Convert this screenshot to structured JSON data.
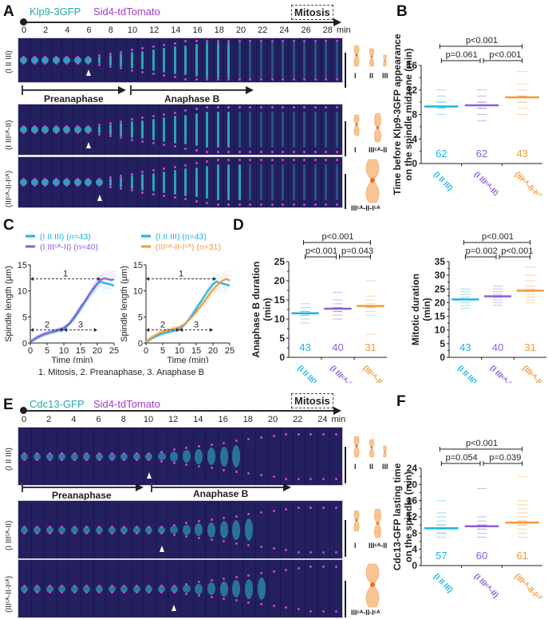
{
  "panels": {
    "A": {
      "letter": "A",
      "channel_green": "Klp9-3GFP",
      "channel_magenta": "Sid4-tdTomato",
      "mitosis_label": "Mitosis",
      "time_ticks": [
        "0",
        "2",
        "4",
        "6",
        "8",
        "10",
        "12",
        "14",
        "16",
        "18",
        "20",
        "22",
        "24",
        "26",
        "28"
      ],
      "time_unit": "min",
      "rows": [
        {
          "label": "(I II III)",
          "anaphase_frame": 6
        },
        {
          "label": "(I IIIᶜᴬ-II)",
          "anaphase_frame": 6
        },
        {
          "label": "(IIIᶜᴬ-II-Iᶜᴬ)",
          "anaphase_frame": 7
        }
      ],
      "phases": {
        "preanaphase": "Preanaphase",
        "anaphase_b": "Anaphase B"
      },
      "chromosome_labels": {
        "row1": [
          "I",
          "II",
          "III"
        ],
        "row2": [
          "I",
          "IIIᶜᴬ-II"
        ],
        "row3": [
          "IIIᶜᴬ-II-Iᶜᴬ"
        ]
      }
    },
    "E": {
      "letter": "E",
      "channel_green": "Cdc13-GFP",
      "channel_magenta": "Sid4-tdTomato",
      "mitosis_label": "Mitosis",
      "time_ticks": [
        "0",
        "2",
        "4",
        "6",
        "8",
        "10",
        "12",
        "14",
        "16",
        "18",
        "20",
        "22",
        "24"
      ],
      "time_unit": "min",
      "rows": [
        {
          "label": "(I II III)"
        },
        {
          "label": "(I IIIᶜᴬ-II)"
        },
        {
          "label": "(IIIᶜᴬ-II-Iᶜᴬ)"
        }
      ],
      "phases": {
        "preanaphase": "Preanaphase",
        "anaphase_b": "Anaphase B"
      },
      "chromosome_labels": {
        "row1": [
          "I",
          "II",
          "III"
        ],
        "row2": [
          "I",
          "IIIᶜᴬ-II"
        ],
        "row3": [
          "IIIᶜᴬ-II-Iᶜᴬ"
        ]
      }
    },
    "C_caption": "1. Mitosis, 2. Preanaphase, 3. Anaphase B"
  },
  "colors": {
    "strain1": "#1fb1e6",
    "strain2": "#8a5fd8",
    "strain3": "#f39a3a",
    "chromosome_fill": "#f8c493",
    "centromere": "#f26a1b"
  },
  "chart_data": [
    {
      "id": "B",
      "letter": "B",
      "type": "scatter",
      "ylabel": "Time before Klp9-3GFP appearance on the spindle midzone (min)",
      "ylabel_lines": [
        "Time before Klp9-3GFP appearance",
        "on the spindle midzone (min)"
      ],
      "ylim": [
        0,
        16
      ],
      "yticks": [
        "0",
        "4",
        "8",
        "12",
        "16"
      ],
      "categories": [
        "(I II III)",
        "(I IIIᶜᴬ-II)",
        "(IIIᶜᴬ-II-Iᶜᴬ)"
      ],
      "means": [
        9.3,
        9.5,
        10.8
      ],
      "n": [
        "62",
        "62",
        "43"
      ],
      "points": [
        [
          8,
          9,
          9,
          10,
          10,
          11,
          12
        ],
        [
          7,
          8,
          9,
          9,
          10,
          10,
          11,
          12
        ],
        [
          8,
          9,
          10,
          10,
          11,
          11,
          12,
          13,
          15
        ]
      ],
      "pvalues": {
        "overall": "p<0.001",
        "left": "p=0.061",
        "right": "p<0.001"
      }
    },
    {
      "id": "C1",
      "letter": "C",
      "type": "line",
      "xlabel": "Time (min)",
      "ylabel": "Spindle length (μm)",
      "xlim": [
        0,
        25
      ],
      "ylim": [
        0,
        15
      ],
      "xticks": [
        "0",
        "5",
        "10",
        "15",
        "20",
        "25"
      ],
      "yticks": [
        "0",
        "5",
        "10",
        "15"
      ],
      "legend": [
        "(I II III) (n=43)",
        "(I IIIᶜᴬ-II) (n=40)"
      ],
      "annotations": [
        {
          "label": "1",
          "y": 12.3,
          "x": [
            0,
            21
          ]
        },
        {
          "label": "2",
          "y": 2.5,
          "x": [
            0,
            10
          ]
        },
        {
          "label": "3",
          "y": 2.5,
          "x": [
            10,
            20
          ]
        }
      ],
      "series": [
        {
          "name": "(I II III)",
          "x": [
            0,
            2,
            4,
            6,
            8,
            10,
            12,
            14,
            16,
            18,
            20,
            21,
            22,
            23,
            24,
            25
          ],
          "y": [
            0.2,
            1.0,
            1.6,
            2.0,
            2.3,
            2.6,
            3.8,
            5.6,
            7.6,
            9.6,
            11.3,
            11.8,
            11.5,
            11.4,
            11.2,
            11.0
          ]
        },
        {
          "name": "(I IIIᶜᴬ-II)",
          "x": [
            0,
            2,
            4,
            6,
            8,
            10,
            12,
            14,
            16,
            18,
            20,
            21,
            22,
            23,
            24,
            25
          ],
          "y": [
            0.2,
            1.1,
            1.7,
            2.1,
            2.5,
            2.9,
            4.0,
            5.8,
            7.8,
            9.8,
            11.4,
            12.1,
            12.4,
            12.3,
            12.1,
            12.2
          ]
        }
      ]
    },
    {
      "id": "C2",
      "type": "line",
      "xlabel": "Time (min)",
      "ylabel": "Spindle length (μm)",
      "xlim": [
        0,
        25
      ],
      "ylim": [
        0,
        15
      ],
      "xticks": [
        "0",
        "5",
        "10",
        "15",
        "20",
        "25"
      ],
      "yticks": [
        "0",
        "5",
        "10",
        "15"
      ],
      "legend": [
        "(I II III) (n=43)",
        "(IIIᶜᴬ-II-Iᶜᴬ) (n=31)"
      ],
      "annotations": [
        {
          "label": "1",
          "y": 12.3,
          "x": [
            0,
            21
          ]
        },
        {
          "label": "2",
          "y": 2.5,
          "x": [
            0,
            10
          ]
        },
        {
          "label": "3",
          "y": 2.5,
          "x": [
            10,
            20
          ]
        }
      ],
      "series": [
        {
          "name": "(I II III)",
          "x": [
            0,
            2,
            4,
            6,
            8,
            10,
            12,
            14,
            16,
            18,
            20,
            21,
            22,
            23,
            24,
            25
          ],
          "y": [
            0.2,
            1.0,
            1.6,
            2.0,
            2.3,
            2.6,
            3.8,
            5.6,
            7.6,
            9.6,
            11.3,
            11.8,
            11.5,
            11.4,
            11.2,
            11.0
          ]
        },
        {
          "name": "(IIIᶜᴬ-II-Iᶜᴬ)",
          "x": [
            0,
            2,
            4,
            6,
            8,
            10,
            12,
            14,
            16,
            18,
            20,
            22,
            23,
            24,
            25
          ],
          "y": [
            0.2,
            1.2,
            1.9,
            2.4,
            2.7,
            3.0,
            3.9,
            5.2,
            6.8,
            8.5,
            10.2,
            11.6,
            12.0,
            12.3,
            12.0
          ]
        }
      ]
    },
    {
      "id": "D1",
      "letter": "D",
      "type": "scatter",
      "ylabel_lines": [
        "Anaphase B duration",
        "(min)"
      ],
      "ylabel": "Anaphase B duration (min)",
      "ylim": [
        0,
        25
      ],
      "yticks": [
        "0",
        "5",
        "10",
        "15",
        "20",
        "25"
      ],
      "categories": [
        "(I II III)",
        "(I IIIᶜᴬ-II)",
        "(IIIᶜᴬ-II-Iᶜᴬ)"
      ],
      "means": [
        11.5,
        12.7,
        13.4
      ],
      "n": [
        "43",
        "40",
        "31"
      ],
      "points": [
        [
          9,
          10,
          11,
          11,
          12,
          12,
          13,
          14
        ],
        [
          10,
          11,
          12,
          12,
          13,
          13,
          14,
          15,
          17
        ],
        [
          6,
          11,
          12,
          13,
          13,
          14,
          15,
          16,
          20
        ]
      ],
      "pvalues": {
        "overall": "p<0.001",
        "left": "p<0.001",
        "right": "p=0.043"
      }
    },
    {
      "id": "D2",
      "type": "scatter",
      "ylabel_lines": [
        "Mitotic duration",
        "(min)"
      ],
      "ylabel": "Mitotic duration (min)",
      "ylim": [
        0,
        35
      ],
      "yticks": [
        "0",
        "5",
        "10",
        "15",
        "20",
        "25",
        "30",
        "35"
      ],
      "categories": [
        "(I II III)",
        "(I IIIᶜᴬ-II)",
        "(IIIᶜᴬ-II-Iᶜᴬ)"
      ],
      "means": [
        21.2,
        22.3,
        24.4
      ],
      "n": [
        "43",
        "40",
        "31"
      ],
      "points": [
        [
          18,
          19,
          20,
          21,
          21,
          22,
          23,
          24,
          25
        ],
        [
          19,
          20,
          21,
          22,
          22,
          23,
          24,
          25,
          26
        ],
        [
          20,
          21,
          22,
          23,
          24,
          25,
          26,
          28,
          30,
          33
        ]
      ],
      "pvalues": {
        "overall": "p<0.001",
        "left": "p=0.002",
        "right": "p<0.001"
      }
    },
    {
      "id": "F",
      "letter": "F",
      "type": "scatter",
      "ylabel_lines": [
        "Cdc13-GFP lasting time",
        "on the spindle (min)"
      ],
      "ylabel": "Cdc13-GFP lasting time on the spindle (min)",
      "ylim": [
        0,
        24
      ],
      "yticks": [
        "0",
        "4",
        "8",
        "12",
        "16",
        "20",
        "24"
      ],
      "categories": [
        "(I II III)",
        "(I IIIᶜᴬ-II)",
        "(IIIᶜᴬ-II-Iᶜᴬ)"
      ],
      "means": [
        9.2,
        9.7,
        10.6
      ],
      "n": [
        "57",
        "60",
        "61"
      ],
      "points": [
        [
          7,
          8,
          8,
          9,
          9,
          10,
          10,
          11,
          12,
          13,
          16
        ],
        [
          7,
          8,
          9,
          9,
          10,
          10,
          11,
          12,
          19
        ],
        [
          7,
          8,
          9,
          10,
          10,
          11,
          11,
          12,
          13,
          14,
          15,
          16,
          22
        ]
      ],
      "pvalues": {
        "overall": "p<0.001",
        "left": "p=0.054",
        "right": "p=0.039"
      }
    }
  ]
}
